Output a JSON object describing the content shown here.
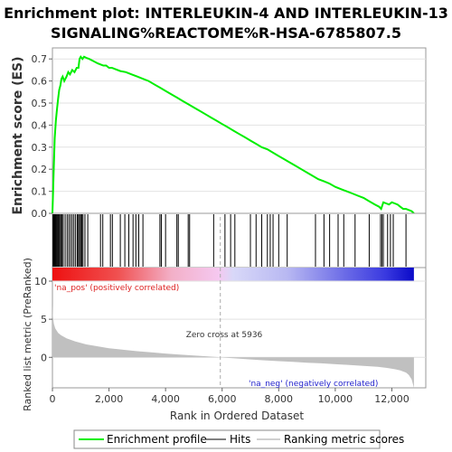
{
  "chart_data": {
    "type": "line",
    "title_line1": "Enrichment plot: INTERLEUKIN-4 AND INTERLEUKIN-13",
    "title_line2": "SIGNALING%REACTOME%R-HSA-6785807.5",
    "top": {
      "ylabel": "Enrichment score (ES)",
      "ylim": [
        0,
        0.75
      ],
      "yticks": [
        0.0,
        0.1,
        0.2,
        0.3,
        0.4,
        0.5,
        0.6,
        0.7
      ],
      "ytick_labels": [
        "0.0",
        "0.1",
        "0.2",
        "0.3",
        "0.4",
        "0.5",
        "0.6",
        "0.7"
      ],
      "line_color": "#00ee00",
      "series": {
        "name": "Enrichment profile",
        "x": [
          0,
          40,
          80,
          120,
          160,
          200,
          240,
          280,
          320,
          360,
          420,
          500,
          560,
          620,
          700,
          780,
          860,
          920,
          960,
          1000,
          1060,
          1120,
          1200,
          1300,
          1450,
          1600,
          1700,
          1800,
          1900,
          2000,
          2100,
          2200,
          2400,
          2600,
          2800,
          3000,
          3200,
          3400,
          3600,
          3800,
          4000,
          4200,
          4400,
          4600,
          4800,
          5000,
          5200,
          5400,
          5600,
          5800,
          6000,
          6200,
          6400,
          6600,
          6800,
          7000,
          7200,
          7400,
          7600,
          7800,
          8000,
          8200,
          8400,
          8600,
          8800,
          9000,
          9200,
          9400,
          9600,
          9800,
          10000,
          10200,
          10400,
          10600,
          10800,
          11000,
          11200,
          11400,
          11550,
          11620,
          11700,
          11800,
          11900,
          12000,
          12100,
          12200,
          12300,
          12400,
          12500,
          12600,
          12700,
          12780
        ],
        "y": [
          0.0,
          0.18,
          0.34,
          0.42,
          0.47,
          0.52,
          0.56,
          0.58,
          0.61,
          0.62,
          0.6,
          0.62,
          0.64,
          0.63,
          0.65,
          0.64,
          0.66,
          0.66,
          0.7,
          0.71,
          0.7,
          0.71,
          0.705,
          0.7,
          0.69,
          0.68,
          0.675,
          0.67,
          0.67,
          0.66,
          0.66,
          0.655,
          0.645,
          0.64,
          0.63,
          0.62,
          0.61,
          0.6,
          0.585,
          0.57,
          0.555,
          0.54,
          0.525,
          0.51,
          0.495,
          0.48,
          0.465,
          0.45,
          0.435,
          0.42,
          0.405,
          0.39,
          0.375,
          0.36,
          0.345,
          0.33,
          0.315,
          0.3,
          0.29,
          0.275,
          0.26,
          0.245,
          0.23,
          0.215,
          0.2,
          0.185,
          0.17,
          0.155,
          0.145,
          0.135,
          0.12,
          0.11,
          0.1,
          0.09,
          0.08,
          0.07,
          0.055,
          0.04,
          0.03,
          0.02,
          0.05,
          0.045,
          0.04,
          0.05,
          0.045,
          0.04,
          0.03,
          0.02,
          0.02,
          0.015,
          0.01,
          0.0
        ]
      }
    },
    "hits": {
      "name": "Hits",
      "x": [
        20,
        50,
        80,
        110,
        140,
        170,
        200,
        230,
        260,
        300,
        340,
        380,
        450,
        520,
        580,
        640,
        700,
        760,
        820,
        880,
        920,
        960,
        1000,
        1040,
        1080,
        1150,
        1250,
        1700,
        1780,
        2050,
        2120,
        2400,
        2560,
        2700,
        2850,
        2950,
        3050,
        3200,
        3800,
        3850,
        4000,
        4400,
        4450,
        4800,
        4850,
        5700,
        6100,
        6300,
        6450,
        7000,
        7200,
        7400,
        7600,
        7700,
        7800,
        8000,
        8300,
        9300,
        9600,
        9800,
        10100,
        10300,
        10700,
        11200,
        11600,
        11650,
        11700,
        11850,
        11950,
        12050,
        12500
      ]
    },
    "bottom": {
      "ylabel": "Ranked list metric (PreRanked)",
      "ylim": [
        -4,
        10
      ],
      "yticks": [
        0,
        5,
        10
      ],
      "ytick_labels": [
        "0",
        "5",
        "10"
      ],
      "fill_color": "#c0c0c0",
      "series": {
        "name": "Ranking metric scores",
        "x": [
          0,
          20,
          50,
          100,
          200,
          300,
          500,
          800,
          1200,
          1600,
          2000,
          2500,
          3000,
          3500,
          4000,
          4500,
          5000,
          5500,
          5936,
          6500,
          7000,
          7500,
          8000,
          8500,
          9000,
          9500,
          10000,
          10500,
          11000,
          11500,
          11800,
          12100,
          12300,
          12500,
          12600,
          12700,
          12780
        ],
        "y": [
          7.0,
          5.3,
          4.4,
          3.8,
          3.2,
          2.9,
          2.5,
          2.1,
          1.7,
          1.45,
          1.2,
          1.0,
          0.8,
          0.65,
          0.5,
          0.37,
          0.24,
          0.12,
          0.0,
          -0.14,
          -0.27,
          -0.39,
          -0.5,
          -0.6,
          -0.7,
          -0.79,
          -0.9,
          -1.0,
          -1.12,
          -1.25,
          -1.38,
          -1.55,
          -1.72,
          -2.0,
          -2.3,
          -2.9,
          -4.0
        ]
      },
      "pos_label": "'na_pos' (positively correlated)",
      "neg_label": "'na_neg' (negatively correlated)",
      "zero_cross_label": "Zero cross at 5936",
      "zero_cross_x": 5936,
      "pos_label_color": "#dd2222",
      "neg_label_color": "#2222cc"
    },
    "xaxis": {
      "xlabel": "Rank in Ordered Dataset",
      "xlim": [
        0,
        13200
      ],
      "xticks": [
        0,
        2000,
        4000,
        6000,
        8000,
        10000,
        12000
      ],
      "xtick_labels": [
        "0",
        "2,000",
        "4,000",
        "6,000",
        "8,000",
        "10,000",
        "12,000"
      ],
      "n_genes": 12780
    },
    "legend": {
      "placement": "bottom",
      "items": [
        {
          "label": "Enrichment profile",
          "color": "#00ee00"
        },
        {
          "label": "Hits",
          "color": "#808080"
        },
        {
          "label": "Ranking metric scores",
          "color": "#d0d0d0"
        }
      ]
    }
  }
}
